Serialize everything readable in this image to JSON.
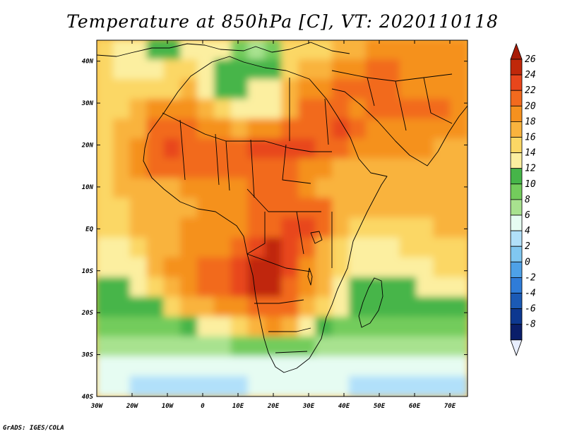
{
  "title": "Temperature at 850hPa [C], VT: 2020110118",
  "credit": "GrADS: IGES/COLA",
  "chart_data": {
    "type": "heatmap",
    "variable": "Temperature at 850hPa",
    "units": "C",
    "valid_time": "2020110118",
    "lon_range": [
      -30,
      75
    ],
    "lat_range": [
      -40,
      45
    ],
    "x_ticks": [
      {
        "value": -30,
        "label": "30W"
      },
      {
        "value": -20,
        "label": "20W"
      },
      {
        "value": -10,
        "label": "10W"
      },
      {
        "value": 0,
        "label": "0"
      },
      {
        "value": 10,
        "label": "10E"
      },
      {
        "value": 20,
        "label": "20E"
      },
      {
        "value": 30,
        "label": "30E"
      },
      {
        "value": 40,
        "label": "40E"
      },
      {
        "value": 50,
        "label": "50E"
      },
      {
        "value": 60,
        "label": "60E"
      },
      {
        "value": 70,
        "label": "70E"
      }
    ],
    "y_ticks": [
      {
        "value": 40,
        "label": "40N"
      },
      {
        "value": 30,
        "label": "30N"
      },
      {
        "value": 20,
        "label": "20N"
      },
      {
        "value": 10,
        "label": "10N"
      },
      {
        "value": 0,
        "label": "EQ"
      },
      {
        "value": -10,
        "label": "10S"
      },
      {
        "value": -20,
        "label": "20S"
      },
      {
        "value": -30,
        "label": "30S"
      },
      {
        "value": -40,
        "label": "40S"
      }
    ],
    "colorbar": {
      "levels": [
        26,
        24,
        22,
        20,
        18,
        16,
        14,
        12,
        10,
        8,
        6,
        4,
        2,
        0,
        -2,
        -4,
        -6,
        -8
      ],
      "labels": [
        "26",
        "24",
        "22",
        "20",
        "18",
        "16",
        "14",
        "12",
        "10",
        "8",
        "6",
        "4",
        "2",
        "0",
        "-2",
        "-4",
        "-6",
        "-8"
      ],
      "colors": [
        "#c0280a",
        "#e8461c",
        "#f26a1e",
        "#f5911f",
        "#f9b33e",
        "#fbd765",
        "#fcefa0",
        "#46b549",
        "#73cc5c",
        "#a8e28f",
        "#e6fcf2",
        "#b1e0fa",
        "#80c7f1",
        "#4ea1e7",
        "#2f7cd8",
        "#1b5ab5",
        "#0d3890",
        "#0a1e6a"
      ],
      "over_color": "#a81b06",
      "under_color": "#e8eefe"
    },
    "field": [
      [
        14,
        13,
        12,
        10,
        10,
        12,
        13,
        12,
        9,
        6,
        9,
        14,
        15,
        15,
        16,
        16,
        18,
        18,
        18,
        18,
        18,
        18
      ],
      [
        14,
        13,
        12,
        12,
        14,
        14,
        13,
        11,
        11,
        10,
        11,
        15,
        16,
        17,
        18,
        19,
        20,
        20,
        19,
        19,
        19,
        18
      ],
      [
        14,
        15,
        15,
        14,
        15,
        16,
        13,
        11,
        11,
        12,
        12,
        16,
        18,
        19,
        21,
        21,
        20,
        20,
        18,
        19,
        19,
        18
      ],
      [
        14,
        15,
        16,
        18,
        18,
        18,
        16,
        15,
        13,
        12,
        12,
        17,
        20,
        21,
        21,
        19,
        20,
        20,
        20,
        21,
        20,
        19
      ],
      [
        14,
        16,
        17,
        20,
        21,
        20,
        19,
        18,
        16,
        18,
        19,
        20,
        21,
        21,
        22,
        20,
        19,
        19,
        18,
        18,
        18,
        18
      ],
      [
        15,
        16,
        18,
        21,
        22,
        21,
        21,
        21,
        21,
        22,
        22,
        23,
        22,
        20,
        20,
        18,
        18,
        18,
        18,
        18,
        17,
        17
      ],
      [
        15,
        16,
        18,
        20,
        21,
        21,
        21,
        21,
        21,
        20,
        20,
        20,
        19,
        19,
        17,
        17,
        17,
        17,
        17,
        17,
        17,
        17
      ],
      [
        15,
        16,
        16,
        16,
        17,
        18,
        18,
        18,
        19,
        20,
        20,
        20,
        19,
        17,
        17,
        17,
        17,
        17,
        17,
        16,
        17,
        16
      ],
      [
        15,
        15,
        16,
        16,
        17,
        17,
        18,
        18,
        19,
        21,
        21,
        21,
        20,
        20,
        17,
        16,
        16,
        16,
        16,
        16,
        16,
        16
      ],
      [
        14,
        15,
        16,
        17,
        17,
        18,
        18,
        18,
        19,
        20,
        21,
        22,
        22,
        20,
        17,
        15,
        14,
        14,
        15,
        15,
        16,
        16
      ],
      [
        12,
        12,
        14,
        17,
        17,
        18,
        18,
        18,
        21,
        23,
        24,
        23,
        20,
        17,
        15,
        13,
        13,
        13,
        14,
        14,
        15,
        15
      ],
      [
        12,
        12,
        13,
        16,
        18,
        19,
        21,
        21,
        22,
        24,
        24,
        22,
        19,
        17,
        14,
        13,
        12,
        12,
        13,
        13,
        14,
        14
      ],
      [
        11,
        11,
        12,
        14,
        17,
        19,
        21,
        21,
        22,
        24,
        24,
        21,
        18,
        16,
        13,
        11,
        11,
        11,
        11,
        12,
        12,
        12
      ],
      [
        10,
        10,
        11,
        11,
        14,
        16,
        17,
        18,
        19,
        21,
        21,
        20,
        17,
        14,
        12,
        10,
        10,
        10,
        10,
        10,
        10,
        10
      ],
      [
        9,
        9,
        9,
        9,
        9,
        10,
        12,
        13,
        15,
        17,
        18,
        16,
        12,
        10,
        9,
        8,
        8,
        8,
        8,
        8,
        8,
        8
      ],
      [
        6,
        6,
        6,
        6,
        6,
        6,
        7,
        7,
        8,
        9,
        9,
        9,
        8,
        7,
        6,
        6,
        6,
        6,
        6,
        6,
        6,
        6
      ],
      [
        5,
        5,
        5,
        5,
        5,
        5,
        5,
        5,
        5,
        5,
        5,
        5,
        5,
        5,
        5,
        5,
        5,
        5,
        4,
        4,
        4,
        4
      ],
      [
        4,
        4,
        3,
        3,
        3,
        3,
        3,
        3,
        3,
        4,
        4,
        4,
        4,
        4,
        4,
        3,
        3,
        2,
        2,
        2,
        3,
        3
      ]
    ]
  }
}
